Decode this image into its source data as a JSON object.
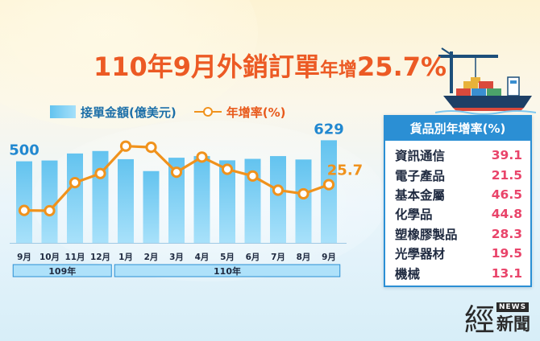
{
  "title": {
    "prefix": "110年9月外銷訂單",
    "middle": "年增",
    "value": "25.7%"
  },
  "legend": {
    "bar_label": "接單金額(億美元)",
    "line_label": "年增率(%)"
  },
  "chart_data": {
    "type": "bar",
    "categories": [
      "9月",
      "10月",
      "11月",
      "12月",
      "1月",
      "2月",
      "3月",
      "4月",
      "5月",
      "6月",
      "7月",
      "8月",
      "9月"
    ],
    "year_groups": [
      {
        "label": "109年",
        "count": 4
      },
      {
        "label": "110年",
        "count": 9
      }
    ],
    "series": [
      {
        "name": "接單金額(億美元)",
        "type": "bar",
        "values": [
          500,
          505,
          548,
          563,
          513,
          440,
          522,
          532,
          506,
          515,
          532,
          511,
          629
        ],
        "labels": [
          "500",
          "",
          "",
          "",
          "",
          "",
          "",
          "",
          "",
          "",
          "",
          "",
          "629"
        ]
      },
      {
        "name": "年增率(%)",
        "type": "line",
        "values": [
          9.9,
          9.7,
          26.9,
          32.5,
          49.3,
          48.6,
          33.3,
          42.6,
          35.1,
          31.0,
          22.3,
          20.1,
          25.7
        ],
        "labels": [
          "",
          "",
          "",
          "",
          "",
          "",
          "",
          "",
          "",
          "",
          "",
          "",
          "25.7"
        ]
      }
    ],
    "bar_ylim": [
      0,
      700
    ],
    "line_ylim": [
      -10,
      60
    ],
    "colors": {
      "bar_top": "#63c3ef",
      "bar_bottom": "#a8e1fa",
      "line": "#f0921c",
      "marker_fill": "#ffffff",
      "bar_label": "#2288d0",
      "line_label": "#f0921c",
      "year_box_fill": "#aee1fa",
      "year_box_border": "#2b8fd4"
    }
  },
  "panel": {
    "title": "貨品別年增率(%)",
    "items": [
      {
        "label": "資訊通信",
        "value": "39.1"
      },
      {
        "label": "電子產品",
        "value": "21.5"
      },
      {
        "label": "基本金屬",
        "value": "46.5"
      },
      {
        "label": "化學品",
        "value": "44.8"
      },
      {
        "label": "塑橡膠製品",
        "value": "28.3"
      },
      {
        "label": "光學器材",
        "value": "19.5"
      },
      {
        "label": "機械",
        "value": "13.1"
      }
    ]
  },
  "logo": {
    "glyph": "經",
    "news": "NEWS",
    "name": "新聞"
  }
}
